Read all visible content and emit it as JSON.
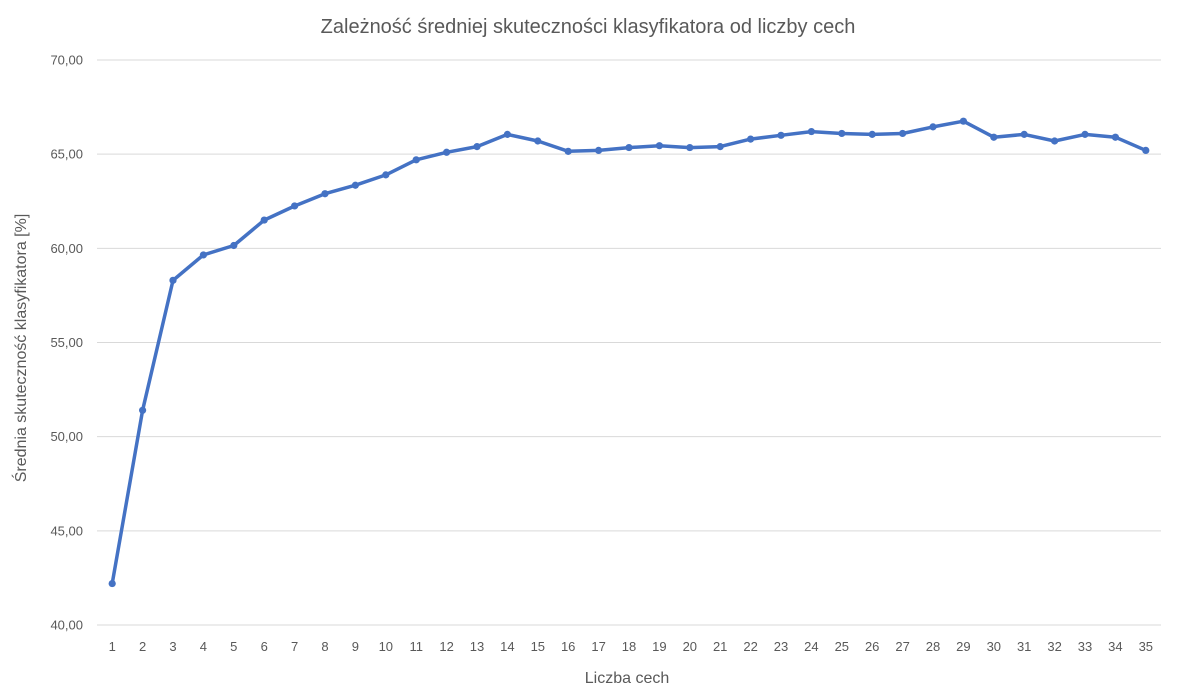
{
  "chart_data": {
    "type": "line",
    "title": "Zależność średniej skuteczności klasyfikatora od liczby cech",
    "xlabel": "Liczba cech",
    "ylabel": "Średnia skuteczność klasyfikatora [%]",
    "ylim": [
      40,
      70
    ],
    "y_ticks": [
      "40,00",
      "45,00",
      "50,00",
      "55,00",
      "60,00",
      "65,00",
      "70,00"
    ],
    "grid": true,
    "legend": "none",
    "categories": [
      "1",
      "2",
      "3",
      "4",
      "5",
      "6",
      "7",
      "8",
      "9",
      "10",
      "11",
      "12",
      "13",
      "14",
      "15",
      "16",
      "17",
      "18",
      "19",
      "20",
      "21",
      "22",
      "23",
      "24",
      "25",
      "26",
      "27",
      "28",
      "29",
      "30",
      "31",
      "32",
      "33",
      "34",
      "35"
    ],
    "series": [
      {
        "color": "#4472c4",
        "values": [
          42.2,
          51.4,
          58.3,
          59.65,
          60.15,
          61.5,
          62.25,
          62.9,
          63.35,
          63.9,
          64.7,
          65.1,
          65.4,
          66.05,
          65.7,
          65.15,
          65.2,
          65.35,
          65.45,
          65.35,
          65.4,
          65.8,
          66.0,
          66.2,
          66.1,
          66.05,
          66.1,
          66.45,
          66.75,
          65.9,
          66.05,
          65.7,
          66.05,
          65.9,
          65.2
        ]
      }
    ]
  }
}
